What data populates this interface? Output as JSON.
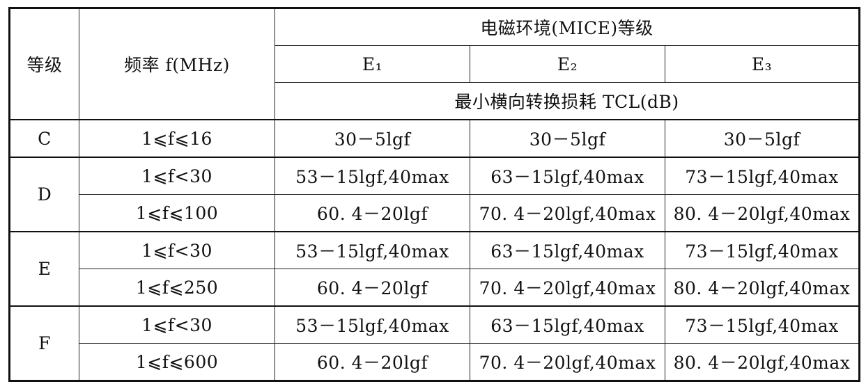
{
  "header": {
    "grade": "等级",
    "frequency": "频率 f(MHz)",
    "environment": "电磁环境(MICE)等级",
    "classes": [
      "E₁",
      "E₂",
      "E₃"
    ],
    "measure": "最小横向转换损耗 TCL(dB)"
  },
  "groups": [
    {
      "grade": "C",
      "rows": [
        {
          "frequency": "1⩽f⩽16",
          "values": [
            "30－5lgf",
            "30－5lgf",
            "30－5lgf"
          ]
        }
      ]
    },
    {
      "grade": "D",
      "rows": [
        {
          "frequency": "1⩽f<30",
          "values": [
            "53－15lgf,40max",
            "63－15lgf,40max",
            "73－15lgf,40max"
          ]
        },
        {
          "frequency": "1⩽f⩽100",
          "values": [
            "60. 4－20lgf",
            "70. 4－20lgf,40max",
            "80. 4－20lgf,40max"
          ]
        }
      ]
    },
    {
      "grade": "E",
      "rows": [
        {
          "frequency": "1⩽f<30",
          "values": [
            "53－15lgf,40max",
            "63－15lgf,40max",
            "73－15lgf,40max"
          ]
        },
        {
          "frequency": "1⩽f⩽250",
          "values": [
            "60. 4－20lgf",
            "70. 4－20lgf,40max",
            "80. 4－20lgf,40max"
          ]
        }
      ]
    },
    {
      "grade": "F",
      "rows": [
        {
          "frequency": "1⩽f<30",
          "values": [
            "53－15lgf,40max",
            "63－15lgf,40max",
            "73－15lgf,40max"
          ]
        },
        {
          "frequency": "1⩽f⩽600",
          "values": [
            "60. 4－20lgf",
            "70. 4－20lgf,40max",
            "80. 4－20lgf,40max"
          ]
        }
      ]
    }
  ]
}
